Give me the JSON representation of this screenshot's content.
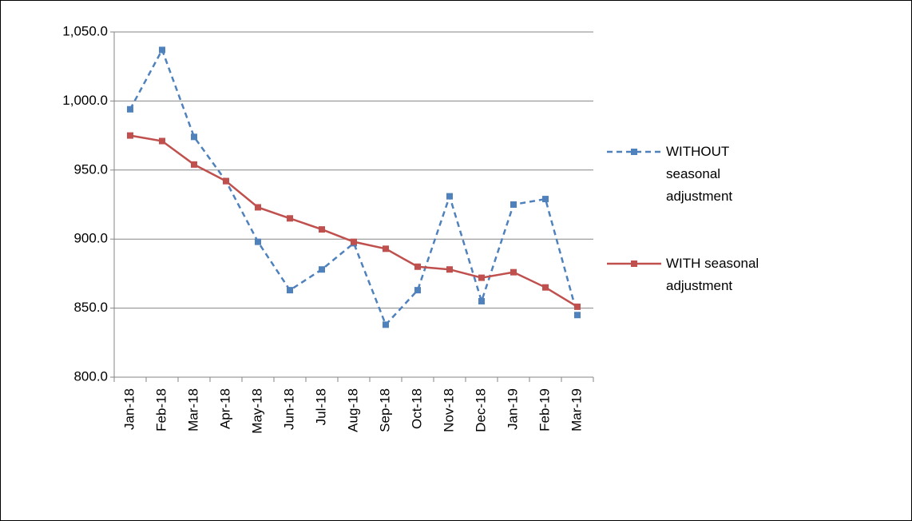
{
  "chart_data": {
    "type": "line",
    "categories": [
      "Jan-18",
      "Feb-18",
      "Mar-18",
      "Apr-18",
      "May-18",
      "Jun-18",
      "Jul-18",
      "Aug-18",
      "Sep-18",
      "Oct-18",
      "Nov-18",
      "Dec-18",
      "Jan-19",
      "Feb-19",
      "Mar-19"
    ],
    "series": [
      {
        "name": "WITHOUT seasonal adjustment",
        "color": "#4f81bd",
        "dash": true,
        "values": [
          994,
          1037,
          974,
          942,
          898,
          863,
          878,
          897,
          838,
          863,
          931,
          855,
          925,
          929,
          845
        ]
      },
      {
        "name": "WITH seasonal adjustment",
        "color": "#c0504d",
        "dash": false,
        "values": [
          975,
          971,
          954,
          942,
          923,
          915,
          907,
          898,
          893,
          880,
          878,
          872,
          876,
          865,
          851
        ]
      }
    ],
    "ylim": [
      800,
      1050
    ],
    "yticks": [
      {
        "value": 800,
        "label": "800.0"
      },
      {
        "value": 850,
        "label": "850.0"
      },
      {
        "value": 900,
        "label": "900.0"
      },
      {
        "value": 950,
        "label": "950.0"
      },
      {
        "value": 1000,
        "label": "1,000.0"
      },
      {
        "value": 1050,
        "label": "1,050.0"
      }
    ],
    "grid": true,
    "legend": "right"
  }
}
